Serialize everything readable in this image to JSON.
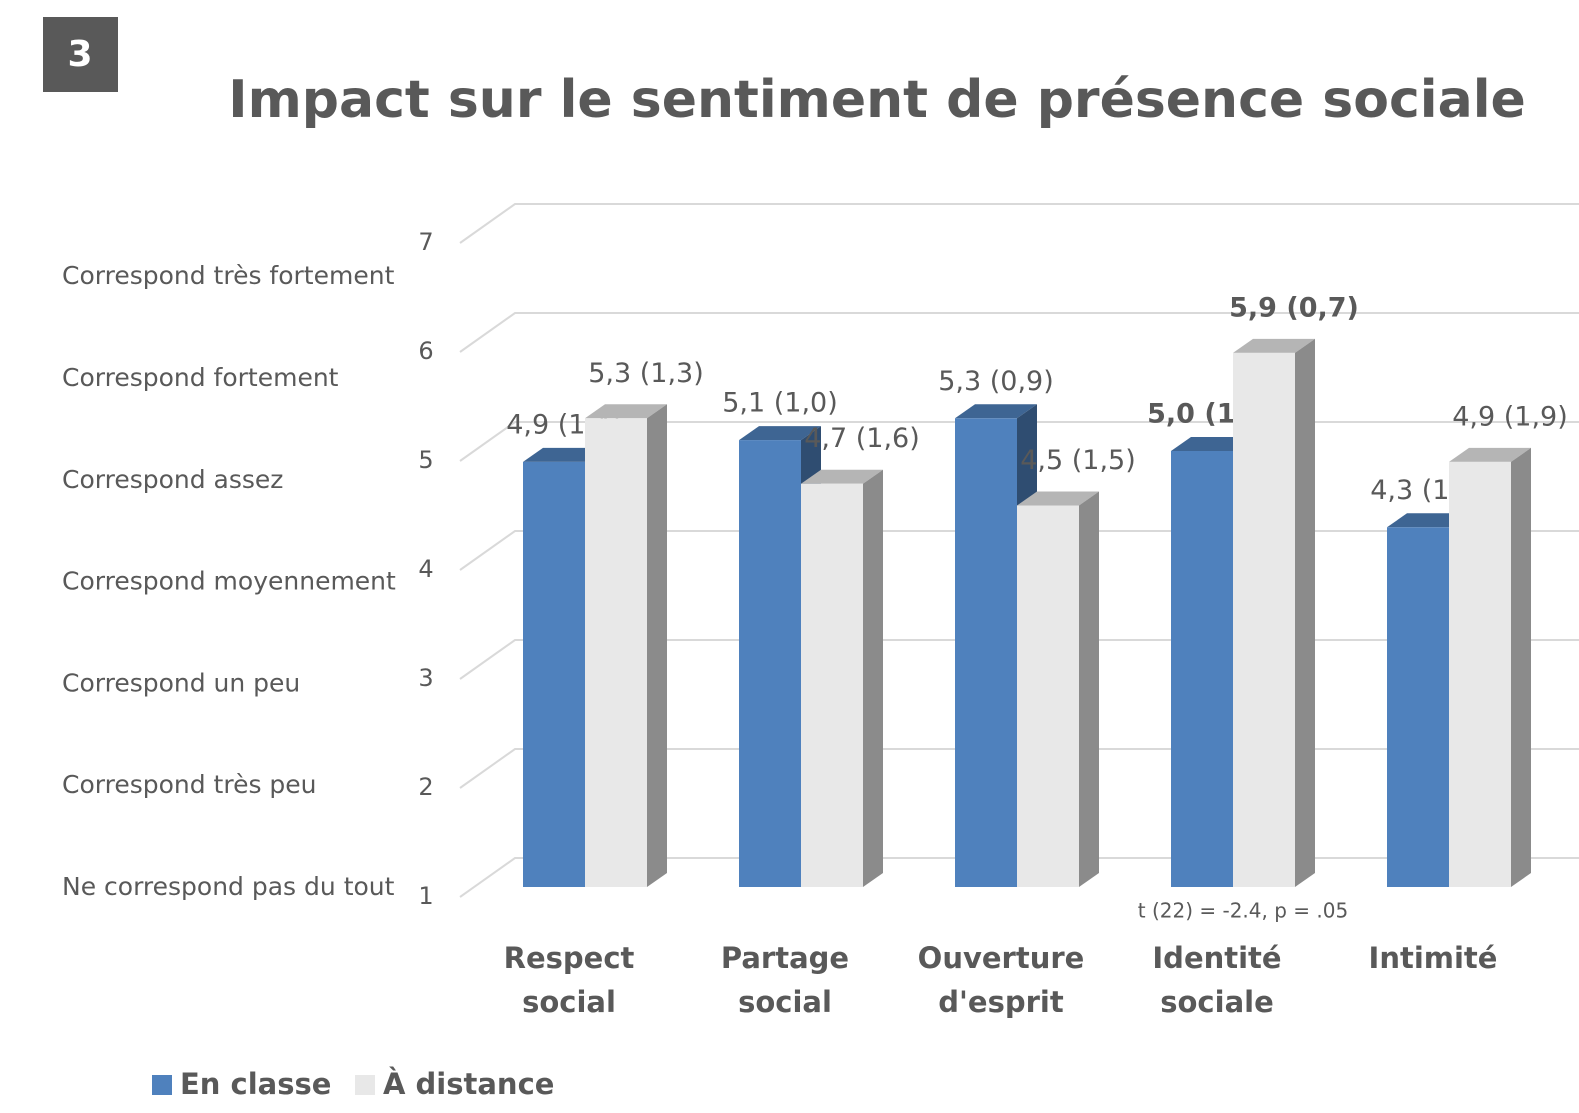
{
  "badge": "3",
  "chart_data": {
    "type": "bar3d",
    "title": "Impact sur le sentiment de présence sociale",
    "categories": [
      "Respect social",
      "Partage social",
      "Ouverture d'esprit",
      "Identité sociale",
      "Intimité"
    ],
    "series": [
      {
        "name": "En classe",
        "color": "#4f81bd",
        "values": [
          4.9,
          5.1,
          5.3,
          5.0,
          4.3
        ],
        "value_labels": [
          "4,9 (1,4)",
          "5,1 (1,0)",
          "5,3 (0,9)",
          "5,0 (1,0)",
          "4,3 (1,8)"
        ]
      },
      {
        "name": "À distance",
        "color": "#e8e8e8",
        "values": [
          5.3,
          4.7,
          4.5,
          5.9,
          4.9
        ],
        "value_labels": [
          "5,3 (1,3)",
          "4,7 (1,6)",
          "4,5 (1,5)",
          "5,9 (0,7)",
          "4,9 (1,9)"
        ]
      }
    ],
    "ylim": [
      1,
      7
    ],
    "yticks": [
      1,
      2,
      3,
      4,
      5,
      6,
      7
    ],
    "scale_labels": [
      "Ne correspond pas du tout",
      "Correspond très peu",
      "Correspond un peu",
      "Correspond moyennement",
      "Correspond assez",
      "Correspond fortement",
      "Correspond très fortement"
    ],
    "grid": true,
    "legend": "bottom-left",
    "emphasized": "Identité sociale",
    "annotation": "t (22) = -2.4, p = .05"
  }
}
